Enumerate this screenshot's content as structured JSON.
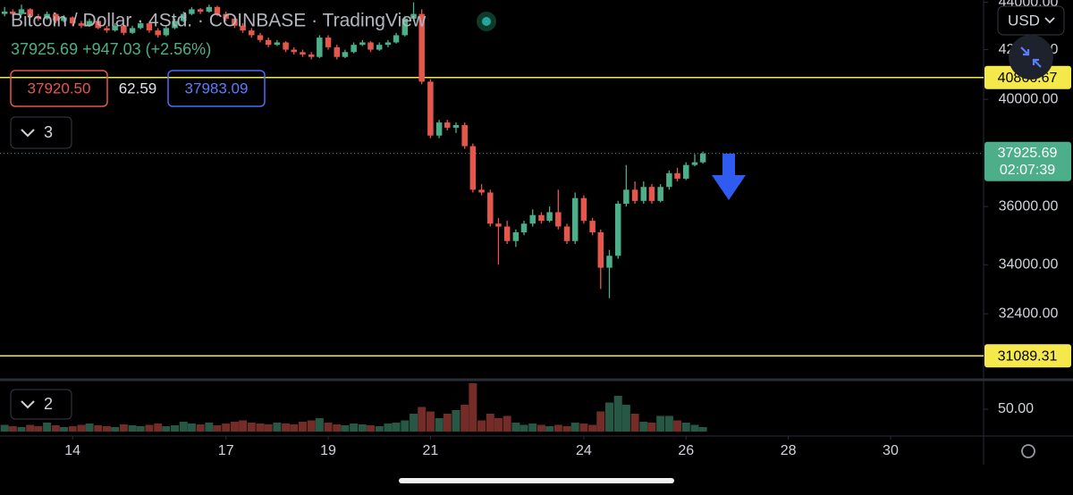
{
  "header": {
    "title": "Bitcoin / Dollar · 4Std. · COINBASE · TradingView",
    "quote": "37925.69 +947.03 (+2.56%)",
    "bid": "37920.50",
    "spread": "62.59",
    "ask": "37983.09",
    "indicators_count": "3",
    "volume_pane_count": "2",
    "currency": "USD"
  },
  "chart_data": {
    "type": "candlestick",
    "log_y": true,
    "up_color": "#4caf8a",
    "down_color": "#e5574d",
    "xlim": [
      12.58,
      31.82
    ],
    "xticks": [
      14,
      17,
      19,
      21,
      24,
      26,
      28,
      30
    ],
    "ylim": [
      30500,
      44100
    ],
    "yticks": [
      {
        "value": 44000,
        "label": "44000.00"
      },
      {
        "value": 42000,
        "label": "42000.00"
      },
      {
        "value": 40000,
        "label": "40000.00"
      },
      {
        "value": 36000,
        "label": "36000.00"
      },
      {
        "value": 34000,
        "label": "34000.00"
      },
      {
        "value": 32400,
        "label": "32400.00"
      }
    ],
    "x": [
      12.67,
      12.83,
      13,
      13.17,
      13.33,
      13.5,
      13.67,
      13.83,
      14,
      14.17,
      14.33,
      14.5,
      14.67,
      14.83,
      15,
      15.17,
      15.33,
      15.5,
      15.67,
      15.83,
      16,
      16.17,
      16.33,
      16.5,
      16.67,
      16.83,
      17,
      17.17,
      17.33,
      17.5,
      17.67,
      17.83,
      18,
      18.17,
      18.33,
      18.5,
      18.67,
      18.83,
      19,
      19.17,
      19.33,
      19.5,
      19.67,
      19.83,
      20,
      20.17,
      20.33,
      20.5,
      20.67,
      20.83,
      21,
      21.17,
      21.33,
      21.5,
      21.67,
      21.83,
      22,
      22.17,
      22.33,
      22.5,
      22.67,
      22.83,
      23,
      23.17,
      23.33,
      23.5,
      23.67,
      23.83,
      24,
      24.17,
      24.33,
      24.5,
      24.67,
      24.83,
      25,
      25.17,
      25.33,
      25.5,
      25.67,
      25.83,
      26,
      26.17,
      26.33
    ],
    "open": [
      43500,
      43600,
      43500,
      43700,
      43400,
      43300,
      43500,
      43200,
      43350,
      43100,
      43000,
      43200,
      42900,
      42800,
      43000,
      42700,
      42900,
      43100,
      42800,
      42600,
      42900,
      43200,
      43500,
      43700,
      43600,
      43800,
      43500,
      43300,
      43000,
      42800,
      42600,
      42400,
      42200,
      42300,
      42000,
      41900,
      41800,
      41700,
      42500,
      42100,
      41700,
      41900,
      42200,
      42300,
      42000,
      42200,
      42300,
      42600,
      43300,
      43500,
      40700,
      38600,
      39100,
      38900,
      39000,
      38200,
      36600,
      36500,
      35400,
      35300,
      34800,
      35100,
      35400,
      35700,
      35500,
      35800,
      35300,
      34800,
      36300,
      35500,
      35100,
      33900,
      34300,
      36100,
      36600,
      36200,
      36700,
      36200,
      36700,
      37200,
      37000,
      37500,
      37600
    ],
    "high": [
      43800,
      43700,
      43900,
      43750,
      43500,
      43600,
      43550,
      43450,
      43400,
      43200,
      43300,
      43250,
      43000,
      43100,
      43050,
      43000,
      43200,
      43150,
      42900,
      43000,
      43300,
      43600,
      43800,
      43750,
      43900,
      43850,
      43600,
      43350,
      43100,
      42900,
      42700,
      42500,
      42400,
      42350,
      42100,
      42000,
      41900,
      42600,
      42600,
      42200,
      42000,
      42300,
      42400,
      42350,
      42300,
      42400,
      42700,
      43400,
      44000,
      43700,
      40800,
      39200,
      39200,
      39100,
      39100,
      38300,
      36800,
      36600,
      35600,
      35500,
      35200,
      35500,
      35900,
      35800,
      36000,
      36600,
      35400,
      36500,
      36400,
      35600,
      35200,
      34500,
      36200,
      37500,
      36900,
      36900,
      36800,
      36800,
      37300,
      37400,
      37600,
      37900,
      38000
    ],
    "low": [
      43400,
      43400,
      43450,
      43300,
      43200,
      43250,
      43100,
      43150,
      43000,
      42900,
      42950,
      42850,
      42700,
      42750,
      42600,
      42650,
      42850,
      42700,
      42500,
      42550,
      42850,
      43150,
      43450,
      43500,
      43550,
      43400,
      43200,
      42900,
      42700,
      42500,
      42300,
      42100,
      42150,
      41900,
      41800,
      41700,
      41600,
      41650,
      42000,
      41600,
      41650,
      41850,
      42150,
      41900,
      41950,
      42100,
      42250,
      42550,
      43200,
      40600,
      38500,
      38500,
      38800,
      38700,
      38100,
      36500,
      36400,
      35300,
      34000,
      34700,
      34600,
      35000,
      35300,
      35400,
      35450,
      35200,
      34700,
      34700,
      35400,
      35000,
      33200,
      32900,
      34200,
      36000,
      36100,
      36100,
      36100,
      36150,
      36600,
      36900,
      36950,
      37450,
      37550
    ],
    "close": [
      43600,
      43500,
      43700,
      43400,
      43300,
      43500,
      43200,
      43350,
      43100,
      43000,
      43200,
      42900,
      42800,
      43000,
      42700,
      42900,
      43100,
      42800,
      42600,
      42900,
      43200,
      43500,
      43700,
      43600,
      43800,
      43500,
      43300,
      43000,
      42800,
      42600,
      42400,
      42200,
      42300,
      42000,
      41900,
      41800,
      41700,
      42500,
      42100,
      41700,
      41900,
      42200,
      42300,
      42000,
      42200,
      42300,
      42600,
      43300,
      43500,
      40700,
      38600,
      39100,
      38900,
      39000,
      38200,
      36600,
      36500,
      35400,
      35300,
      34800,
      35100,
      35400,
      35700,
      35500,
      35800,
      35300,
      34800,
      36300,
      35500,
      35100,
      33900,
      34300,
      36100,
      36600,
      36200,
      36700,
      36200,
      36700,
      37200,
      37000,
      37500,
      37600,
      37925.69
    ],
    "hlines": [
      {
        "value": 40866.67,
        "color": "#f5e84a"
      },
      {
        "value": 31089.31,
        "color": "#f5e84a"
      }
    ],
    "last_price": 37925.69,
    "countdown": "02:07:39",
    "volume": {
      "ylim": [
        0,
        110
      ],
      "yticks": [
        {
          "value": 50,
          "label": "50.00"
        }
      ],
      "values": [
        15,
        12,
        10,
        15,
        12,
        20,
        14,
        10,
        12,
        15,
        18,
        14,
        12,
        10,
        16,
        14,
        12,
        15,
        18,
        12,
        14,
        22,
        18,
        16,
        20,
        14,
        18,
        22,
        25,
        20,
        18,
        16,
        20,
        18,
        16,
        22,
        25,
        30,
        20,
        16,
        14,
        18,
        16,
        14,
        12,
        18,
        20,
        25,
        40,
        55,
        45,
        30,
        40,
        48,
        60,
        108,
        25,
        40,
        30,
        35,
        20,
        15,
        18,
        15,
        12,
        15,
        12,
        20,
        18,
        15,
        45,
        65,
        80,
        60,
        40,
        22,
        20,
        35,
        35,
        25,
        20,
        15,
        10
      ]
    }
  }
}
